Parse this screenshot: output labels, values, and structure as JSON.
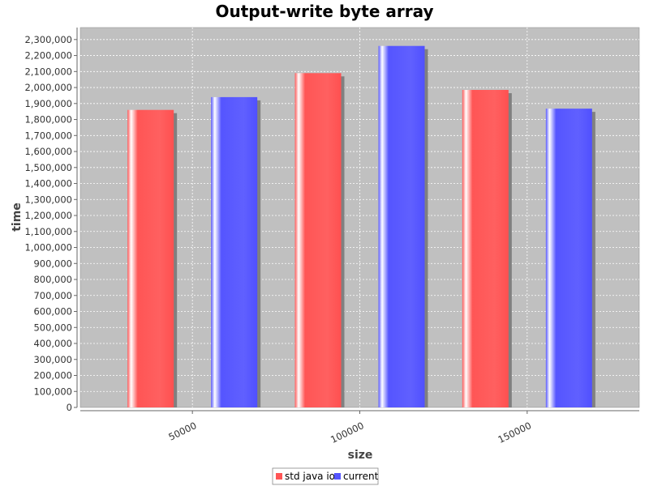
{
  "chart_data": {
    "type": "bar",
    "title": "Output-write byte array",
    "xlabel": "size",
    "ylabel": "time",
    "categories": [
      "50000",
      "100000",
      "150000"
    ],
    "series": [
      {
        "name": "std java io",
        "values": [
          1860000,
          2090000,
          1985000
        ],
        "color": "#ff5555"
      },
      {
        "name": "current",
        "values": [
          1940000,
          2260000,
          1868000
        ],
        "color": "#5555ff"
      }
    ],
    "ylim": [
      0,
      2375000
    ],
    "ytick_step": 100000,
    "grid": true,
    "legend_position": "bottom-center",
    "plot_background": "#c0c0c0"
  }
}
